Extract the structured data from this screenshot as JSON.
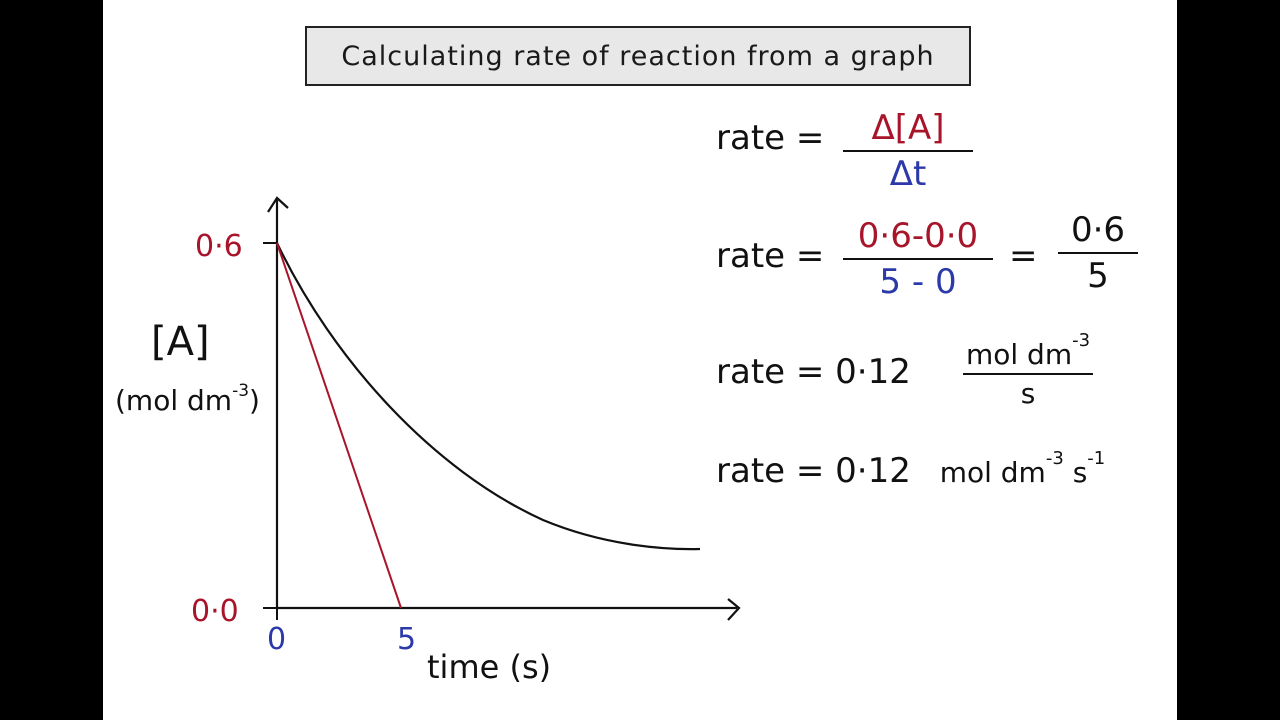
{
  "title": "Calculating rate of reaction from a graph",
  "graph": {
    "y_axis_label": "[A]",
    "y_axis_units": "(mol dm",
    "y_axis_units_exp": "-3",
    "y_axis_units_close": ")",
    "y_tick_top": "0·6",
    "y_tick_bottom": "0·0",
    "x_tick_zero": "0",
    "x_tick_five": "5",
    "x_axis_label": "time (s)"
  },
  "equations": {
    "eq1": {
      "lhs": "rate =",
      "numerator": "Δ[A]",
      "denominator": "Δt"
    },
    "eq2": {
      "lhs": "rate =",
      "numerator": "0·6-0·0",
      "denominator": "5 - 0",
      "equals": "=",
      "numerator2": "0·6",
      "denominator2": "5"
    },
    "eq3": {
      "lhs": "rate = 0·12",
      "unit_num": "mol dm",
      "unit_num_exp": "-3",
      "unit_den": "s"
    },
    "eq4": {
      "lhs": "rate = 0·12",
      "unit": "mol dm",
      "unit_exp": "-3",
      "unit_s": "s",
      "unit_s_exp": "-1"
    }
  },
  "colors": {
    "red": "#a8142a",
    "blue": "#2b3aa8",
    "ink": "#111111"
  }
}
